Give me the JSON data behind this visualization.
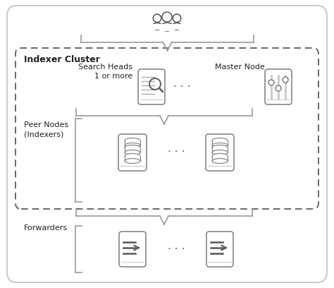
{
  "bg_color": "#ffffff",
  "text_color": "#222222",
  "title": "Indexer Cluster",
  "label_search_heads": "Search Heads\n1 or more",
  "label_master_node": "Master Node",
  "label_peer_nodes": "Peer Nodes\n(Indexers)",
  "label_forwarders": "Forwarders",
  "dots": "· · ·",
  "outer_ec": "#cccccc",
  "dashed_ec": "#555555",
  "bracket_color": "#888888",
  "icon_ec": "#888888",
  "icon_fc": "#ffffff"
}
